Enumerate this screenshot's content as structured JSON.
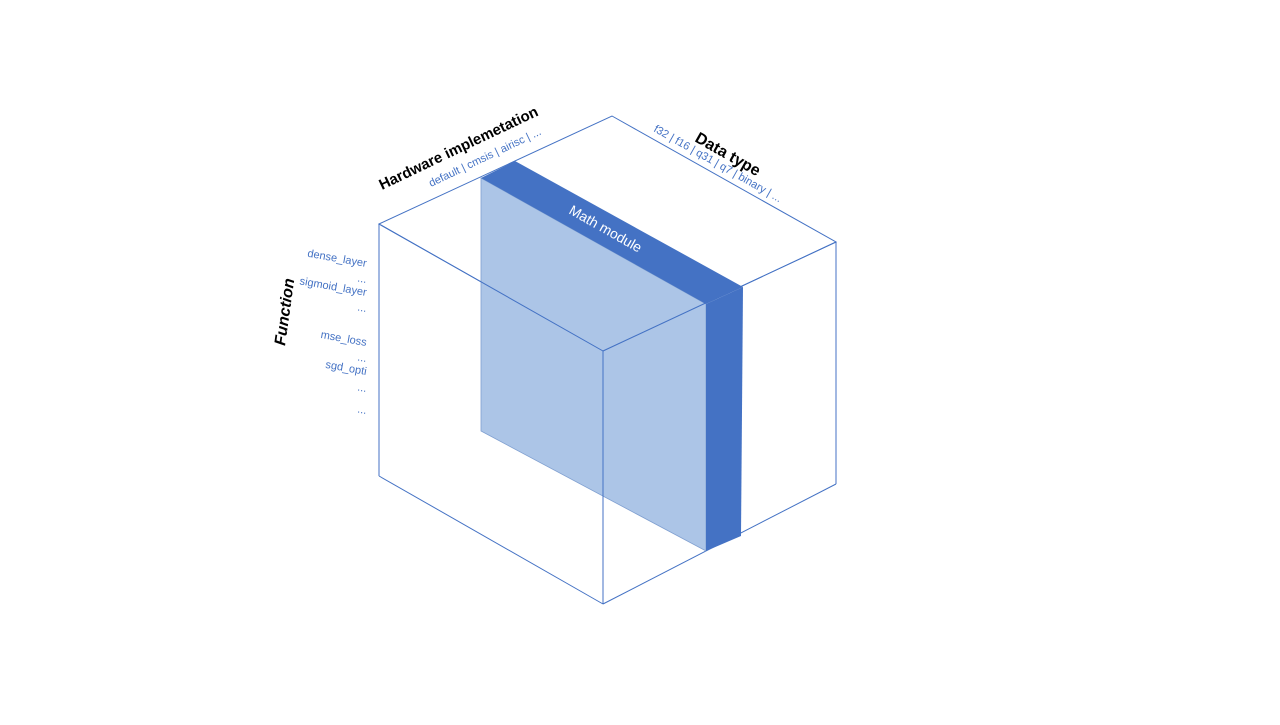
{
  "diagram": {
    "axes": {
      "hardware": {
        "title": "Hardware implemetation",
        "items": "default | cmsis | airisc | ..."
      },
      "data_type": {
        "title": "Data type",
        "items": "f32 | f16 | q31 | q7 | binary | ..."
      },
      "function": {
        "title": "Function",
        "items": [
          "dense_layer",
          "...",
          "sigmoid_layer",
          "...",
          "mse_loss",
          "...",
          "sgd_opti",
          "...",
          "..."
        ]
      }
    },
    "module": {
      "label": "Math module"
    },
    "colors": {
      "cube_edge": "#4472c4",
      "slab_face": "#9dbbe3",
      "slab_top": "#4472c4",
      "slab_side": "#4472c4",
      "label_blue": "#4472c4"
    }
  }
}
